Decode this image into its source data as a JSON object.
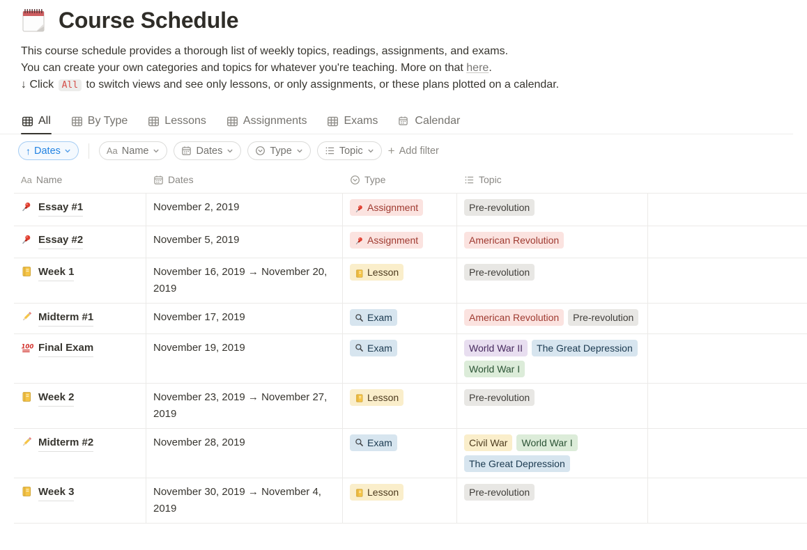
{
  "page": {
    "icon": "notepad-icon",
    "title": "Course Schedule",
    "description": {
      "line1": "This course schedule provides a thorough list of weekly topics, readings, assignments, and exams.",
      "line2_before": "You can create your own categories and topics for whatever you're teaching. More on that ",
      "line2_link": "here",
      "line2_after": ".",
      "line3_before": "↓ Click ",
      "line3_code": "All",
      "line3_after": " to switch views and see only lessons, or only assignments, or these plans plotted on a calendar."
    }
  },
  "views": {
    "tabs": [
      {
        "label": "All",
        "icon": "table-icon",
        "active": true
      },
      {
        "label": "By Type",
        "icon": "table-icon",
        "active": false
      },
      {
        "label": "Lessons",
        "icon": "table-icon",
        "active": false
      },
      {
        "label": "Assignments",
        "icon": "table-icon",
        "active": false
      },
      {
        "label": "Exams",
        "icon": "table-icon",
        "active": false
      },
      {
        "label": "Calendar",
        "icon": "calendar-icon",
        "active": false
      }
    ]
  },
  "toolbar": {
    "sort": {
      "direction": "↑",
      "label": "Dates"
    },
    "filters": [
      {
        "icon": "text-type-icon",
        "label": "Name"
      },
      {
        "icon": "calendar-icon",
        "label": "Dates"
      },
      {
        "icon": "select-type-icon",
        "label": "Type"
      },
      {
        "icon": "list-type-icon",
        "label": "Topic"
      }
    ],
    "add_filter_label": "Add filter"
  },
  "table": {
    "columns": [
      {
        "icon": "text-type-icon",
        "label": "Name"
      },
      {
        "icon": "calendar-icon",
        "label": "Dates"
      },
      {
        "icon": "select-type-icon",
        "label": "Type"
      },
      {
        "icon": "list-type-icon",
        "label": "Topic"
      }
    ],
    "rows": [
      {
        "icon": "pushpin-icon",
        "name": "Essay #1",
        "dates": "November 2, 2019",
        "type": {
          "label": "Assignment",
          "icon": "pushpin-icon",
          "color": "red"
        },
        "topics": [
          {
            "label": "Pre-revolution",
            "color": "gray"
          }
        ]
      },
      {
        "icon": "pushpin-icon",
        "name": "Essay #2",
        "dates": "November 5, 2019",
        "type": {
          "label": "Assignment",
          "icon": "pushpin-icon",
          "color": "red"
        },
        "topics": [
          {
            "label": "American Revolution",
            "color": "red"
          }
        ]
      },
      {
        "icon": "ledger-icon",
        "name": "Week 1",
        "dates": "November 16, 2019 → November 20, 2019",
        "type": {
          "label": "Lesson",
          "icon": "ledger-icon",
          "color": "yellow"
        },
        "topics": [
          {
            "label": "Pre-revolution",
            "color": "gray"
          }
        ]
      },
      {
        "icon": "pencil-icon",
        "name": "Midterm #1",
        "dates": "November 17, 2019",
        "type": {
          "label": "Exam",
          "icon": "magnifier-icon",
          "color": "blue"
        },
        "topics": [
          {
            "label": "American Revolution",
            "color": "red"
          },
          {
            "label": "Pre-revolution",
            "color": "gray"
          }
        ]
      },
      {
        "icon": "hundred-icon",
        "name": "Final Exam",
        "dates": "November 19, 2019",
        "type": {
          "label": "Exam",
          "icon": "magnifier-icon",
          "color": "blue"
        },
        "topics": [
          {
            "label": "World War II",
            "color": "purple"
          },
          {
            "label": "The Great Depression",
            "color": "blue"
          },
          {
            "label": "World War I",
            "color": "green"
          }
        ]
      },
      {
        "icon": "ledger-icon",
        "name": "Week 2",
        "dates": "November 23, 2019 → November 27, 2019",
        "type": {
          "label": "Lesson",
          "icon": "ledger-icon",
          "color": "yellow"
        },
        "topics": [
          {
            "label": "Pre-revolution",
            "color": "gray"
          }
        ]
      },
      {
        "icon": "pencil-icon",
        "name": "Midterm #2",
        "dates": "November 28, 2019",
        "type": {
          "label": "Exam",
          "icon": "magnifier-icon",
          "color": "blue"
        },
        "topics": [
          {
            "label": "Civil War",
            "color": "yellow"
          },
          {
            "label": "World War I",
            "color": "green"
          },
          {
            "label": "The Great Depression",
            "color": "blue"
          }
        ]
      },
      {
        "icon": "ledger-icon",
        "name": "Week 3",
        "dates": "November 30, 2019 → November 4, 2019",
        "type": {
          "label": "Lesson",
          "icon": "ledger-icon",
          "color": "yellow"
        },
        "topics": [
          {
            "label": "Pre-revolution",
            "color": "gray"
          }
        ]
      }
    ]
  },
  "colors": {
    "accent_blue": "#2383e2",
    "code_red": "#d44c47",
    "tag_palette": {
      "gray": {
        "bg": "#e8e7e4",
        "text": "#3f3d39"
      },
      "red": {
        "bg": "#fbe3e0",
        "text": "#9f3a30"
      },
      "yellow": {
        "bg": "#faeecb",
        "text": "#4c3a1e"
      },
      "blue": {
        "bg": "#d7e5ef",
        "text": "#1b3a50"
      },
      "purple": {
        "bg": "#e8def0",
        "text": "#46295e"
      },
      "green": {
        "bg": "#dcecd9",
        "text": "#2b5335"
      }
    }
  }
}
